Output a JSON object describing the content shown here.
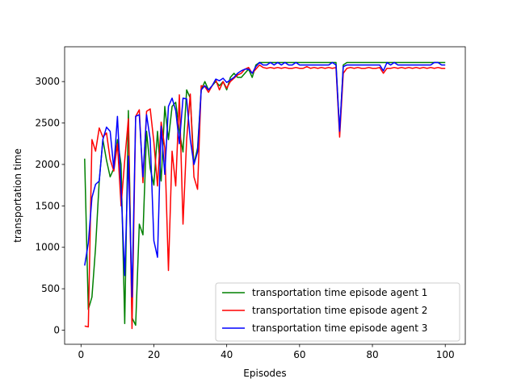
{
  "chart_data": {
    "type": "line",
    "title": "",
    "xlabel": "Episodes",
    "ylabel": "transportation time",
    "xlim": [
      -4.5,
      105.5
    ],
    "ylim": [
      -170,
      3420
    ],
    "xticks": [
      0,
      20,
      40,
      60,
      80,
      100
    ],
    "yticks": [
      0,
      500,
      1000,
      1500,
      2000,
      2500,
      3000
    ],
    "grid": false,
    "legend_position": "lower-right",
    "x": [
      1,
      2,
      3,
      4,
      5,
      6,
      7,
      8,
      9,
      10,
      11,
      12,
      13,
      14,
      15,
      16,
      17,
      18,
      19,
      20,
      21,
      22,
      23,
      24,
      25,
      26,
      27,
      28,
      29,
      30,
      31,
      32,
      33,
      34,
      35,
      36,
      37,
      38,
      39,
      40,
      41,
      42,
      43,
      44,
      45,
      46,
      47,
      48,
      49,
      50,
      51,
      52,
      53,
      54,
      55,
      56,
      57,
      58,
      59,
      60,
      61,
      62,
      63,
      64,
      65,
      66,
      67,
      68,
      69,
      70,
      71,
      72,
      73,
      74,
      75,
      76,
      77,
      78,
      79,
      80,
      81,
      82,
      83,
      84,
      85,
      86,
      87,
      88,
      89,
      90,
      91,
      92,
      93,
      94,
      95,
      96,
      97,
      98,
      99,
      100
    ],
    "series": [
      {
        "name": "transportation time episode agent 1",
        "color": "#008000",
        "values": [
          2070,
          250,
          400,
          1000,
          1800,
          2300,
          2050,
          1850,
          1950,
          2300,
          2000,
          80,
          2650,
          150,
          60,
          1280,
          1150,
          2400,
          1950,
          1750,
          2400,
          1800,
          2700,
          2300,
          2700,
          2750,
          2400,
          2150,
          2900,
          2800,
          2000,
          2200,
          2900,
          3000,
          2900,
          2950,
          3000,
          2950,
          3000,
          2900,
          3050,
          3100,
          3050,
          3050,
          3100,
          3150,
          3050,
          3200,
          3230,
          3230,
          3230,
          3230,
          3230,
          3230,
          3230,
          3230,
          3230,
          3230,
          3230,
          3230,
          3230,
          3230,
          3230,
          3230,
          3230,
          3230,
          3230,
          3230,
          3230,
          3230,
          2380,
          3200,
          3230,
          3230,
          3230,
          3230,
          3230,
          3230,
          3230,
          3230,
          3230,
          3230,
          3230,
          3230,
          3230,
          3230,
          3230,
          3230,
          3230,
          3230,
          3230,
          3230,
          3230,
          3230,
          3230,
          3230,
          3230,
          3230,
          3230,
          3230
        ]
      },
      {
        "name": "transportation time episode agent 2",
        "color": "#ff0000",
        "values": [
          50,
          40,
          2300,
          2160,
          2440,
          2330,
          2380,
          2060,
          1920,
          2250,
          1500,
          2050,
          2550,
          20,
          2580,
          2660,
          1780,
          2640,
          2670,
          2270,
          1740,
          2510,
          2200,
          720,
          2160,
          1740,
          2840,
          1280,
          2300,
          2850,
          1850,
          1700,
          2950,
          2940,
          2870,
          2950,
          3020,
          2900,
          3000,
          2920,
          3000,
          3040,
          3080,
          3100,
          3150,
          3170,
          3100,
          3150,
          3200,
          3170,
          3160,
          3170,
          3160,
          3170,
          3160,
          3170,
          3160,
          3160,
          3170,
          3160,
          3160,
          3180,
          3160,
          3170,
          3160,
          3170,
          3160,
          3170,
          3160,
          3170,
          2330,
          3100,
          3160,
          3170,
          3160,
          3170,
          3160,
          3160,
          3170,
          3160,
          3160,
          3170,
          3100,
          3160,
          3160,
          3170,
          3160,
          3170,
          3160,
          3170,
          3160,
          3170,
          3160,
          3170,
          3160,
          3170,
          3160,
          3170,
          3160,
          3160
        ]
      },
      {
        "name": "transportation time episode agent 3",
        "color": "#0000ff",
        "values": [
          780,
          1050,
          1600,
          1760,
          1800,
          2300,
          2450,
          2400,
          1950,
          2580,
          1700,
          660,
          2100,
          400,
          2580,
          2600,
          1850,
          2600,
          2300,
          1080,
          880,
          2460,
          1880,
          2700,
          2800,
          2650,
          2250,
          2800,
          2790,
          2300,
          2000,
          2150,
          2900,
          2950,
          2900,
          2950,
          3030,
          3010,
          3040,
          2990,
          3020,
          3050,
          3100,
          3130,
          3150,
          3150,
          3100,
          3180,
          3230,
          3200,
          3200,
          3230,
          3200,
          3230,
          3200,
          3230,
          3200,
          3200,
          3230,
          3200,
          3200,
          3200,
          3200,
          3200,
          3200,
          3200,
          3200,
          3200,
          3230,
          3200,
          2400,
          3180,
          3200,
          3200,
          3200,
          3200,
          3200,
          3200,
          3200,
          3200,
          3200,
          3200,
          3130,
          3230,
          3200,
          3230,
          3200,
          3200,
          3200,
          3200,
          3200,
          3200,
          3200,
          3200,
          3200,
          3200,
          3230,
          3230,
          3200,
          3200
        ]
      }
    ]
  }
}
